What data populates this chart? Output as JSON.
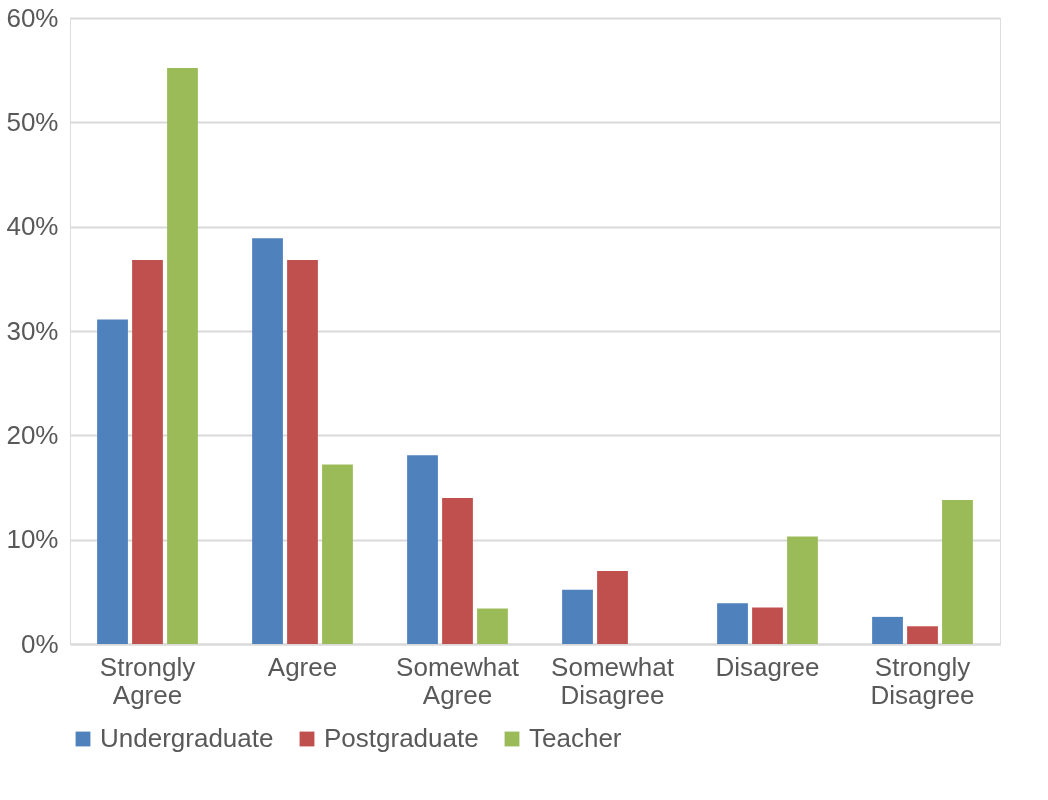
{
  "chart_data": {
    "type": "bar",
    "categories": [
      "Strongly Agree",
      "Agree",
      "Somewhat Agree",
      "Somewhat Disagree",
      "Disagree",
      "Strongly Disagree"
    ],
    "series": [
      {
        "name": "Undergraduate",
        "color": "#4f81bd",
        "values": [
          31.1,
          38.9,
          18.1,
          5.2,
          3.9,
          2.6
        ]
      },
      {
        "name": "Postgraduate",
        "color": "#c0504d",
        "values": [
          36.8,
          36.8,
          14.0,
          7.0,
          3.5,
          1.7
        ]
      },
      {
        "name": "Teacher",
        "color": "#9bbb59",
        "values": [
          55.2,
          17.2,
          3.4,
          0,
          10.3,
          13.8
        ]
      }
    ],
    "ylim": [
      0,
      60
    ],
    "yticks": [
      {
        "value": 0,
        "label": "0%"
      },
      {
        "value": 10,
        "label": "10%"
      },
      {
        "value": 20,
        "label": "20%"
      },
      {
        "value": 30,
        "label": "30%"
      },
      {
        "value": 40,
        "label": "40%"
      },
      {
        "value": 50,
        "label": "50%"
      },
      {
        "value": 60,
        "label": "60%"
      }
    ],
    "grid": "y",
    "legend": "bottom"
  }
}
